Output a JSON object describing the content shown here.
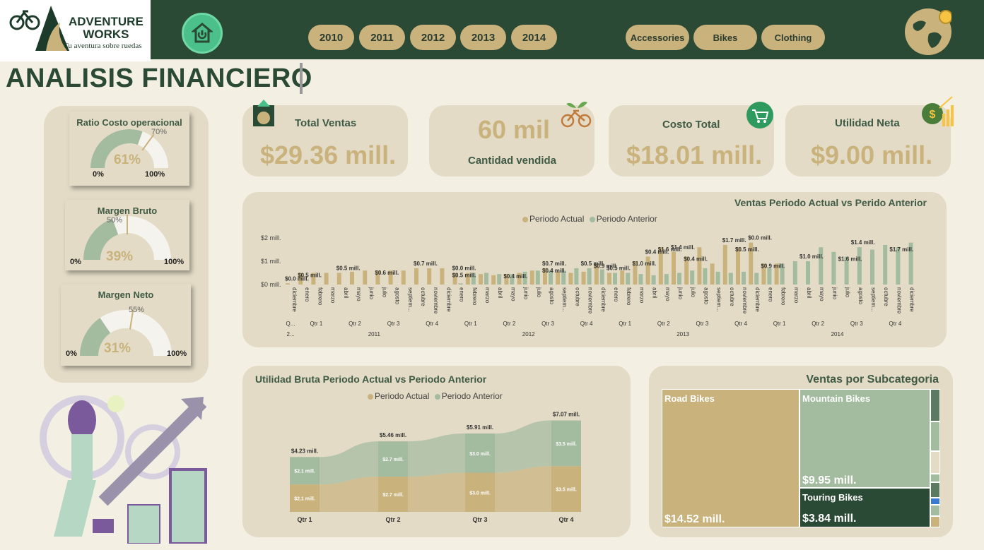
{
  "brand": {
    "line1": "ADVENTURE",
    "line2": "WORKS",
    "tagline": "Tu aventura sobre ruedas"
  },
  "filters": {
    "years": [
      "2010",
      "2011",
      "2012",
      "2013",
      "2014"
    ],
    "categories": [
      "Accessories",
      "Bikes",
      "Clothing"
    ]
  },
  "page_title": "ANALISIS FINANCIERO",
  "gauges": [
    {
      "title": "Ratio Costo operacional",
      "value": "61%",
      "fraction": 0.61,
      "target": "70%",
      "target_fraction": 0.7,
      "min": "0%",
      "max": "100%"
    },
    {
      "title": "Margen Bruto",
      "value": "39%",
      "fraction": 0.39,
      "target": "50%",
      "target_fraction": 0.5,
      "min": "0%",
      "max": "100%"
    },
    {
      "title": "Margen Neto",
      "value": "31%",
      "fraction": 0.31,
      "target": "55%",
      "target_fraction": 0.55,
      "min": "0%",
      "max": "100%"
    }
  ],
  "kpis": {
    "total_ventas": {
      "label": "Total Ventas",
      "value": "$29.36 mill."
    },
    "cantidad": {
      "label": "Cantidad vendida",
      "value": "60 mil"
    },
    "costo_total": {
      "label": "Costo Total",
      "value": "$18.01 mill."
    },
    "utilidad_neta": {
      "label": "Utilidad Neta",
      "value": "$9.00 mill."
    }
  },
  "colors": {
    "actual": "#c9b27c",
    "anterior": "#a3bb9f",
    "dark_green": "#2b4a36",
    "road": "#c9b27c",
    "mountain": "#a3bb9f",
    "touring": "#2b4a36"
  },
  "chart_data": [
    {
      "type": "bar",
      "title": "Ventas Periodo Actual vs Perido Anterior",
      "legend": [
        "Periodo Actual",
        "Periodo Anterior"
      ],
      "y_ticks": [
        "$0 mill.",
        "$1 mill.",
        "$2 mill."
      ],
      "ylim": [
        0,
        2
      ],
      "x_months": [
        "diciembre",
        "enero",
        "febrero",
        "marzo",
        "abril",
        "mayo",
        "junio",
        "julio",
        "agosto",
        "septiem...",
        "octubre",
        "noviembre",
        "diciembre",
        "enero",
        "febrero",
        "marzo",
        "abril",
        "mayo",
        "junio",
        "julio",
        "agosto",
        "septiem...",
        "octubre",
        "noviembre",
        "diciembre",
        "enero",
        "febrero",
        "marzo",
        "abril",
        "mayo",
        "junio",
        "julio",
        "agosto",
        "septiem...",
        "octubre",
        "noviembre",
        "diciembre",
        "enero",
        "febrero",
        "marzo",
        "abril",
        "mayo",
        "junio",
        "julio",
        "agosto",
        "septiem...",
        "octubre",
        "noviembre",
        "diciembre"
      ],
      "quarters": [
        "Q...",
        "Qtr 1",
        "Qtr 2",
        "Qtr 3",
        "Qtr 4",
        "Qtr 1",
        "Qtr 2",
        "Qtr 3",
        "Qtr 4",
        "Qtr 1",
        "Qtr 2",
        "Qtr 3",
        "Qtr 4",
        "Qtr 1",
        "Qtr 2",
        "Qtr 3",
        "Qtr 4"
      ],
      "years": [
        "2...",
        "2011",
        "2012",
        "2013",
        "2014"
      ],
      "series": [
        {
          "name": "Periodo Actual",
          "values": [
            0.05,
            0.5,
            0.5,
            0.5,
            0.5,
            0.55,
            0.6,
            0.6,
            0.6,
            0.6,
            0.7,
            0.7,
            0.7,
            0.5,
            0.5,
            0.45,
            0.4,
            0.45,
            0.5,
            0.6,
            0.7,
            0.55,
            0.5,
            0.55,
            0.9,
            0.5,
            0.6,
            1.0,
            1.2,
            1.6,
            1.4,
            1.2,
            1.6,
            0.9,
            1.7,
            1.6,
            1.8,
            0.9,
            0.9,
            0,
            0,
            0,
            0,
            0,
            0,
            0,
            0,
            0,
            0
          ]
        },
        {
          "name": "Periodo Anterior",
          "values": [
            0,
            0,
            0,
            0,
            0,
            0,
            0,
            0,
            0,
            0,
            0,
            0,
            0,
            0.05,
            0.5,
            0.5,
            0.45,
            0.45,
            0.55,
            0.6,
            0.6,
            0.6,
            0.7,
            0.7,
            0.65,
            0.5,
            0.5,
            0.45,
            0.4,
            0.45,
            0.5,
            0.6,
            0.7,
            0.55,
            0.5,
            0.55,
            0.5,
            0.7,
            0.9,
            1.0,
            1.0,
            1.6,
            1.4,
            1.2,
            1.6,
            1.5,
            1.7,
            1.6,
            1.8
          ]
        }
      ],
      "data_labels": [
        "$0.0 mill.",
        "$0.5 mill.",
        "$0.5 mill.",
        "$0.6 mill.",
        "$0.7 mill.",
        "$0.5 mill.",
        "$0.0 mill.",
        "$0.4 mill.",
        "$0.7 mill.",
        "$0.4 mill.",
        "$0.5 mill.",
        "$0.9 mill.",
        "$0.5 mill.",
        "$1.0 mill.",
        "$0.4 mill.",
        "$1.6 mill.",
        "$1.4 mill.",
        "$0.4 mill.",
        "$1.7 mill.",
        "$0.5 mill.",
        "$0.0 mill.",
        "$0.9 mill.",
        "$1.0 mill.",
        "$1.6 mill.",
        "$1.4 mill.",
        "$1.7 mill."
      ]
    },
    {
      "type": "bar",
      "title": "Utilidad Bruta Periodo Actual vs Periodo Anterior",
      "legend": [
        "Periodo Actual",
        "Periodo Anterior"
      ],
      "categories": [
        "Qtr 1",
        "Qtr 2",
        "Qtr 3",
        "Qtr 4"
      ],
      "totals": [
        "$4.23 mill.",
        "$5.46 mill.",
        "$5.91 mill.",
        "$7.07 mill."
      ],
      "total_values": [
        4.23,
        5.46,
        5.91,
        7.07
      ],
      "series": [
        {
          "name": "Periodo Actual",
          "values": [
            2.1,
            2.7,
            3.0,
            3.5
          ],
          "labels": [
            "$2.1 mill.",
            "$2.7 mill.",
            "$3.0 mill.",
            "$3.5 mill."
          ]
        },
        {
          "name": "Periodo Anterior",
          "values": [
            2.1,
            2.7,
            3.0,
            3.5
          ],
          "labels": [
            "$2.1 mill.",
            "$2.7 mill.",
            "$3.0 mill.",
            "$3.5 mill."
          ]
        }
      ]
    },
    {
      "type": "treemap",
      "title": "Ventas por Subcategoria",
      "items": [
        {
          "name": "Road Bikes",
          "value": 14.52,
          "label": "$14.52 mill."
        },
        {
          "name": "Mountain Bikes",
          "value": 9.95,
          "label": "$9.95 mill."
        },
        {
          "name": "Touring Bikes",
          "value": 3.84,
          "label": "$3.84 mill."
        }
      ]
    }
  ]
}
